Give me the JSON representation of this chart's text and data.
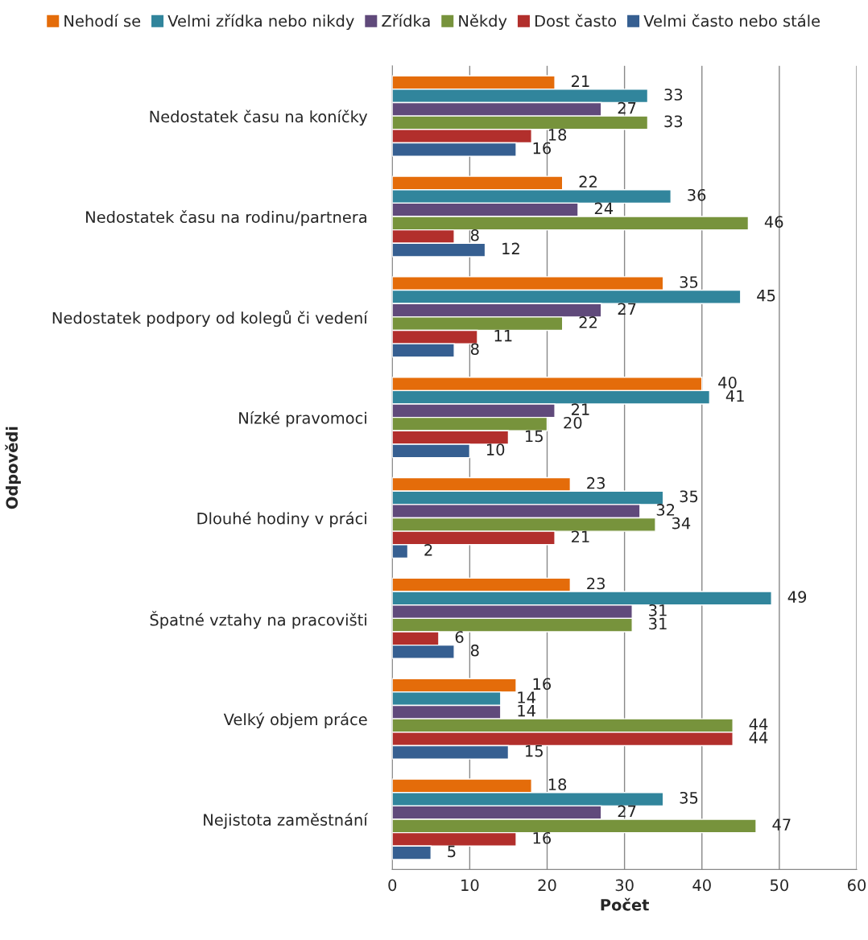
{
  "chart_data": {
    "type": "bar",
    "orientation": "horizontal",
    "xlabel": "Počet",
    "ylabel": "Odpovědi",
    "categories": [
      "Nedostatek času na koníčky",
      "Nedostatek času na rodinu/partnera",
      "Nedostatek podpory od kolegů či vedení",
      "Nízké pravomoci",
      "Dlouhé hodiny v práci",
      "Špatné vztahy na pracovišti",
      "Velký objem práce",
      "Nejistota zaměstnání"
    ],
    "series": [
      {
        "name": "Nehodí se",
        "color": "#e46c0a",
        "values": [
          21,
          22,
          35,
          40,
          23,
          23,
          16,
          18
        ]
      },
      {
        "name": "Velmi zřídka nebo nikdy",
        "color": "#31859c",
        "values": [
          33,
          36,
          45,
          41,
          35,
          49,
          14,
          35
        ]
      },
      {
        "name": "Zřídka",
        "color": "#604a7b",
        "values": [
          27,
          24,
          27,
          21,
          32,
          31,
          14,
          27
        ]
      },
      {
        "name": "Někdy",
        "color": "#77933c",
        "values": [
          33,
          46,
          22,
          20,
          34,
          31,
          44,
          47
        ]
      },
      {
        "name": "Dost často",
        "color": "#b22f2c",
        "values": [
          18,
          8,
          11,
          15,
          21,
          6,
          44,
          16
        ]
      },
      {
        "name": "Velmi často nebo stále",
        "color": "#365f91",
        "values": [
          16,
          12,
          8,
          10,
          2,
          8,
          15,
          5
        ]
      }
    ],
    "xlim": [
      0,
      60
    ],
    "xticks": [
      0,
      10,
      20,
      30,
      40,
      50,
      60
    ],
    "grid": "x",
    "legend": "top",
    "data_labels": true
  }
}
